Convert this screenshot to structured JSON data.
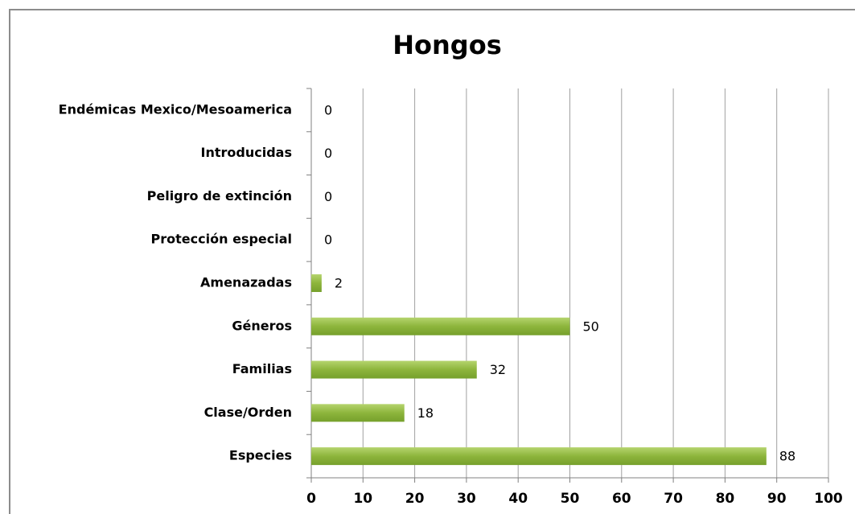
{
  "chart_data": {
    "type": "bar",
    "orientation": "horizontal",
    "title": "Hongos",
    "categories": [
      "Endémicas Mexico/Mesoamerica",
      "Introducidas",
      "Peligro de extinción",
      "Protección especial",
      "Amenazadas",
      "Géneros",
      "Familias",
      "Clase/Orden",
      "Especies"
    ],
    "values": [
      0,
      0,
      0,
      0,
      2,
      50,
      32,
      18,
      88
    ],
    "color": "#8db53c",
    "xlim": [
      0,
      100
    ],
    "xticks": [
      0,
      10,
      20,
      30,
      40,
      50,
      60,
      70,
      80,
      90,
      100
    ],
    "grid": true
  }
}
